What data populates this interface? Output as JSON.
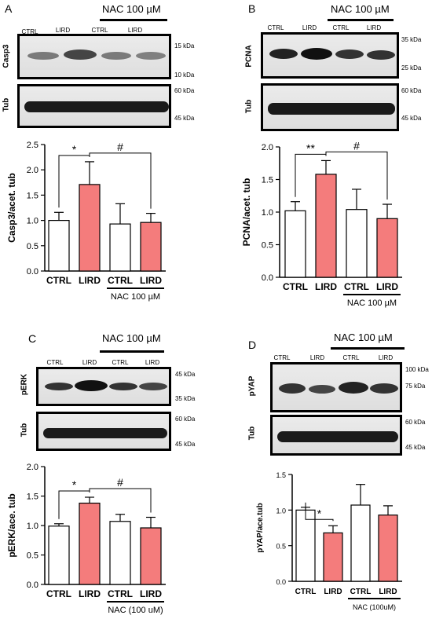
{
  "figure": {
    "panels": [
      {
        "id": "a",
        "letter": "A",
        "nac_label": "NAC 100 µM",
        "lanes": [
          "CTRL",
          "LIRD",
          "CTRL",
          "LIRD"
        ],
        "blots": [
          {
            "label": "Casp3",
            "markers": [
              "15 kDa",
              "10 kDa"
            ]
          },
          {
            "label": "Tub",
            "markers": [
              "60 kDa",
              "45 kDa"
            ]
          }
        ]
      },
      {
        "id": "b",
        "letter": "B",
        "nac_label": "NAC 100 µM",
        "lanes": [
          "CTRL",
          "LIRD",
          "CTRL",
          "LIRD"
        ],
        "blots": [
          {
            "label": "PCNA",
            "markers": [
              "35 kDa",
              "25 kDa"
            ]
          },
          {
            "label": "Tub",
            "markers": [
              "60 kDa",
              "45 kDa"
            ]
          }
        ]
      },
      {
        "id": "c",
        "letter": "C",
        "nac_label": "NAC 100 µM",
        "lanes": [
          "CTRL",
          "LIRD",
          "CTRL",
          "LIRD"
        ],
        "blots": [
          {
            "label": "pERK",
            "markers": [
              "45 kDa",
              "35 kDa"
            ]
          },
          {
            "label": "Tub",
            "markers": [
              "60 kDa",
              "45 kDa"
            ]
          }
        ]
      },
      {
        "id": "d",
        "letter": "D",
        "nac_label": "NAC 100 µM",
        "lanes": [
          "CTRL",
          "LIRD",
          "CTRL",
          "LIRD"
        ],
        "blots": [
          {
            "label": "pYAP",
            "markers": [
              "100 kDa",
              "75 kDa"
            ]
          },
          {
            "label": "Tub",
            "markers": [
              "60 kDa",
              "45 kDa"
            ]
          }
        ]
      }
    ]
  },
  "colors": {
    "ctrl_fill": "#ffffff",
    "lird_fill": "#f47c7c",
    "axis": "#000000"
  },
  "chart_data": [
    {
      "type": "bar",
      "categories": [
        "CTRL",
        "LIRD",
        "CTRL",
        "LIRD"
      ],
      "values": [
        1.0,
        1.71,
        0.93,
        0.96
      ],
      "errors": [
        0.16,
        0.45,
        0.4,
        0.18
      ],
      "ylabel": "Casp3/acet. tub",
      "ylim": [
        0,
        2.5
      ],
      "yticks": [
        "0.0",
        "0.5",
        "1.0",
        "1.5",
        "2.0",
        "2.5"
      ],
      "group_label": "NAC 100 µM",
      "significance": [
        {
          "between": [
            0,
            1
          ],
          "symbol": "*"
        },
        {
          "between": [
            1,
            3
          ],
          "symbol": "#"
        }
      ]
    },
    {
      "type": "bar",
      "categories": [
        "CTRL",
        "LIRD",
        "CTRL",
        "LIRD"
      ],
      "values": [
        1.02,
        1.58,
        1.04,
        0.9
      ],
      "errors": [
        0.14,
        0.21,
        0.31,
        0.22
      ],
      "ylabel": "PCNA/acet. tub",
      "ylim": [
        0,
        2.0
      ],
      "yticks": [
        "0.0",
        "0.5",
        "1.0",
        "1.5",
        "2.0"
      ],
      "group_label": "NAC 100 µM",
      "significance": [
        {
          "between": [
            0,
            1
          ],
          "symbol": "**"
        },
        {
          "between": [
            1,
            3
          ],
          "symbol": "#"
        }
      ]
    },
    {
      "type": "bar",
      "categories": [
        "CTRL",
        "LIRD",
        "CTRL",
        "LIRD"
      ],
      "values": [
        0.99,
        1.38,
        1.07,
        0.96
      ],
      "errors": [
        0.04,
        0.1,
        0.12,
        0.18
      ],
      "ylabel": "pERK/ace. tub",
      "ylim": [
        0,
        2.0
      ],
      "yticks": [
        "0.0",
        "0.5",
        "1.0",
        "1.5",
        "2.0"
      ],
      "group_label": "NAC (100 uM)",
      "significance": [
        {
          "between": [
            0,
            1
          ],
          "symbol": "*"
        },
        {
          "between": [
            1,
            3
          ],
          "symbol": "#"
        }
      ]
    },
    {
      "type": "bar",
      "categories": [
        "CTRL",
        "LIRD",
        "CTRL",
        "LIRD"
      ],
      "values": [
        1.0,
        0.68,
        1.07,
        0.93
      ],
      "errors": [
        0.04,
        0.1,
        0.29,
        0.13
      ],
      "ylabel": "pYAP/ace.tub",
      "ylim": [
        0,
        1.5
      ],
      "yticks": [
        "0.0",
        "0.5",
        "1.0",
        "1.5"
      ],
      "group_label": "NAC (100uM)",
      "significance": [
        {
          "between": [
            0,
            1
          ],
          "symbol": "*"
        }
      ]
    }
  ]
}
